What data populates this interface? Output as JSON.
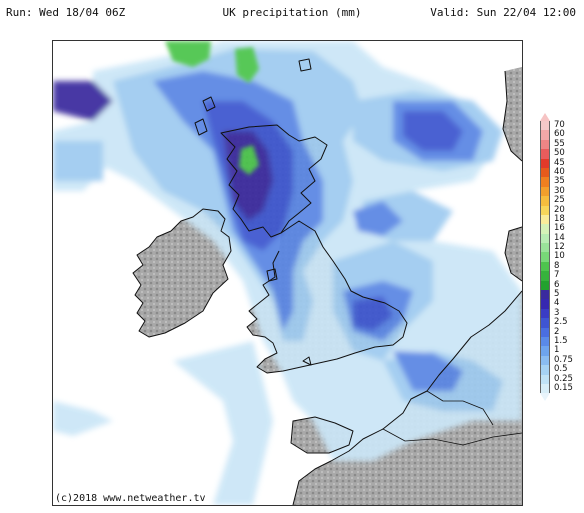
{
  "header": {
    "run": "Run: Wed 18/04 06Z",
    "title": "UK precipitation (mm)",
    "valid": "Valid: Sun 22/04 12:00"
  },
  "credit": "(c)2018 www.netweather.tv",
  "legend": {
    "top_color": "#f6c4c4",
    "bottom_color": "#e8f4fb",
    "items": [
      {
        "label": "70",
        "color": "#f4c9c9"
      },
      {
        "label": "60",
        "color": "#f2a8a8"
      },
      {
        "label": "55",
        "color": "#ee8585"
      },
      {
        "label": "50",
        "color": "#e85c5c"
      },
      {
        "label": "45",
        "color": "#e23a2a"
      },
      {
        "label": "40",
        "color": "#e65a1c"
      },
      {
        "label": "35",
        "color": "#ee7f20"
      },
      {
        "label": "30",
        "color": "#f29f2c"
      },
      {
        "label": "25",
        "color": "#f6bd3e"
      },
      {
        "label": "20",
        "color": "#f8d65a"
      },
      {
        "label": "18",
        "color": "#faec9a"
      },
      {
        "label": "16",
        "color": "#d6f2b8"
      },
      {
        "label": "14",
        "color": "#b9ecb4"
      },
      {
        "label": "12",
        "color": "#9ae29a"
      },
      {
        "label": "10",
        "color": "#78d878"
      },
      {
        "label": "8",
        "color": "#4ec44e"
      },
      {
        "label": "7",
        "color": "#36b23c"
      },
      {
        "label": "6",
        "color": "#22a22e"
      },
      {
        "label": "5",
        "color": "#3a2a9e"
      },
      {
        "label": "4",
        "color": "#3628b0"
      },
      {
        "label": "3",
        "color": "#3a3cc4"
      },
      {
        "label": "2.5",
        "color": "#3f55d2"
      },
      {
        "label": "2",
        "color": "#4a6ee0"
      },
      {
        "label": "1.5",
        "color": "#5a8ae8"
      },
      {
        "label": "1",
        "color": "#6ea4ee"
      },
      {
        "label": "0.75",
        "color": "#8abcf2"
      },
      {
        "label": "0.5",
        "color": "#a6d2f4"
      },
      {
        "label": "0.25",
        "color": "#c0e2f6"
      },
      {
        "label": "0.15",
        "color": "#d8eef8"
      }
    ]
  },
  "colors": {
    "land": "#9b9b9b",
    "land_light": "#b8b8b8",
    "sea": "#ffffff",
    "green": "#4cc44c",
    "purple": "#3b2c9e",
    "blue_dark": "#3d56cf",
    "blue_mid": "#5a86e4",
    "blue_light": "#9fcbf0",
    "blue_pale": "#cbe6f7",
    "coast": "#111111"
  }
}
